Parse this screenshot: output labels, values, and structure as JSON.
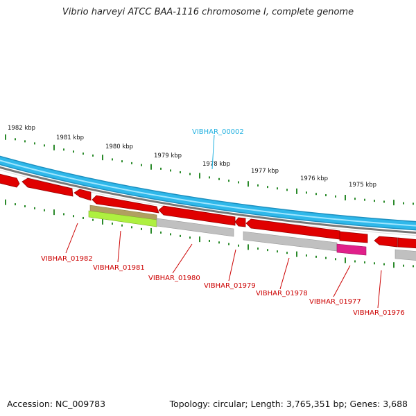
{
  "title": "Vibrio harveyi ATCC BAA-1116 chromosome I, complete genome",
  "footer": {
    "accession": "Accession: NC_009783",
    "topology": "Topology: circular; Length: 3,765,351 bp; Genes: 3,688"
  },
  "ruler": {
    "labels": [
      "1982 kbp",
      "1981 kbp",
      "1980 kbp",
      "1979 kbp",
      "1978 kbp",
      "1977 kbp",
      "1976 kbp",
      "1975 kbp"
    ]
  },
  "genes": [
    {
      "name": "VIBHAR_00002",
      "color": "#29b6e6"
    },
    {
      "name": "VIBHAR_01982",
      "color": "#e00000"
    },
    {
      "name": "VIBHAR_01981",
      "color": "#e00000"
    },
    {
      "name": "VIBHAR_01980",
      "color": "#e00000"
    },
    {
      "name": "VIBHAR_01979",
      "color": "#e00000"
    },
    {
      "name": "VIBHAR_01978",
      "color": "#e00000"
    },
    {
      "name": "VIBHAR_01977",
      "color": "#e00000"
    },
    {
      "name": "VIBHAR_01976",
      "color": "#e00000"
    }
  ],
  "colors": {
    "cds": "#e8e8e8",
    "cds_red": "#ee0000",
    "feature_gray": "#b8b8b8",
    "feature_olive": "#b0a060",
    "feature_green": "#aef040",
    "feature_magenta": "#e0208a",
    "ruler_tick": "#2a8a2a",
    "cyan_track": "#3cc8f0",
    "label_red": "#cc0000",
    "label_cyan": "#1fb0e0"
  }
}
